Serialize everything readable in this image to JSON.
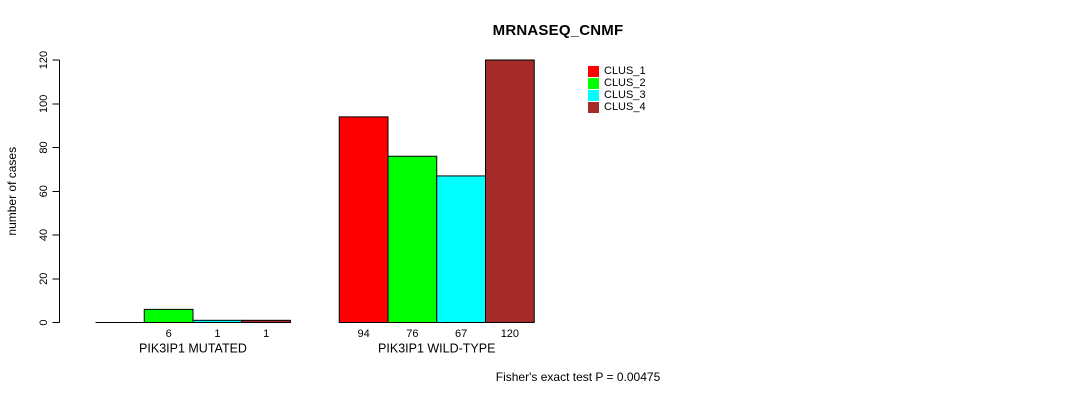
{
  "chart_data": {
    "type": "bar",
    "title": "MRNASEQ_CNMF",
    "ylabel": "number of cases",
    "xlabel": "",
    "ylim": [
      0,
      120
    ],
    "yticks": [
      0,
      20,
      40,
      60,
      80,
      100,
      120
    ],
    "grid": false,
    "categories": [
      "PIK3IP1 MUTATED",
      "PIK3IP1 WILD-TYPE"
    ],
    "series": [
      {
        "name": "CLUS_1",
        "color": "#FF0000",
        "values": [
          0,
          94
        ]
      },
      {
        "name": "CLUS_2",
        "color": "#00FF00",
        "values": [
          6,
          76
        ]
      },
      {
        "name": "CLUS_3",
        "color": "#00FFFF",
        "values": [
          1,
          67
        ]
      },
      {
        "name": "CLUS_4",
        "color": "#A52A2A",
        "values": [
          1,
          120
        ]
      }
    ],
    "bar_value_labels": [
      [
        "",
        "6",
        "1",
        "1"
      ],
      [
        "94",
        "76",
        "67",
        "120"
      ]
    ],
    "legend": {
      "position": "top-right",
      "entries": [
        {
          "label": "CLUS_1",
          "color": "#FF0000"
        },
        {
          "label": "CLUS_2",
          "color": "#00FF00"
        },
        {
          "label": "CLUS_3",
          "color": "#00FFFF"
        },
        {
          "label": "CLUS_4",
          "color": "#A52A2A"
        }
      ]
    },
    "annotation": "Fisher's exact test P = 0.00475",
    "colors": {
      "axis": "#000000",
      "text": "#000000",
      "background": "#FFFFFF"
    }
  }
}
